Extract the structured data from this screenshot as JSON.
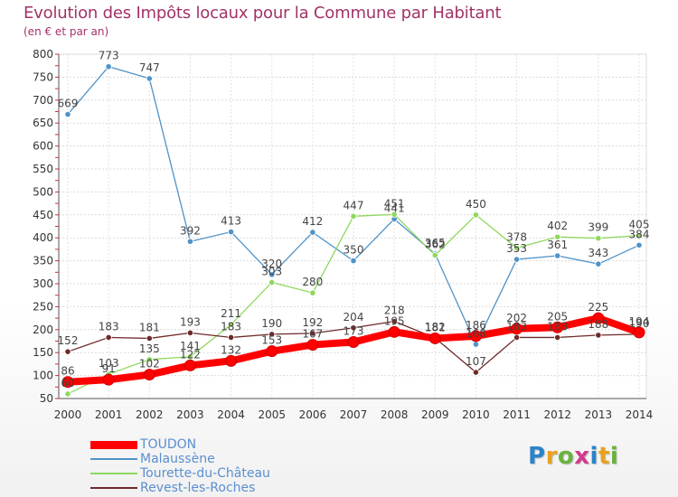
{
  "header": {
    "title": "Evolution des Impôts locaux pour la Commune par Habitant",
    "subtitle": "(en € et par an)"
  },
  "chart_data": {
    "type": "line",
    "title": "Evolution des Impôts locaux pour la Commune par Habitant",
    "subtitle": "(en € et par an)",
    "xlabel": "",
    "ylabel": "",
    "categories": [
      "2000",
      "2001",
      "2002",
      "2003",
      "2004",
      "2005",
      "2006",
      "2007",
      "2008",
      "2009",
      "2010",
      "2011",
      "2012",
      "2013",
      "2014"
    ],
    "ylim": [
      50,
      800
    ],
    "yticks": [
      50,
      100,
      150,
      200,
      250,
      300,
      350,
      400,
      450,
      500,
      550,
      600,
      650,
      700,
      750,
      800
    ],
    "grid": true,
    "legend_position": "bottom-left",
    "series": [
      {
        "name": "Malaussène",
        "color": "#4f93c8",
        "values": [
          669,
          773,
          747,
          392,
          413,
          320,
          412,
          350,
          441,
          365,
          168,
          353,
          361,
          343,
          384
        ]
      },
      {
        "name": "Tourette-du-Château",
        "color": "#8fd85f",
        "values": [
          60,
          103,
          135,
          141,
          211,
          303,
          280,
          447,
          451,
          362,
          450,
          378,
          402,
          399,
          405
        ]
      },
      {
        "name": "Revest-les-Roches",
        "color": "#6e2a2a",
        "values": [
          152,
          183,
          181,
          193,
          183,
          190,
          192,
          204,
          218,
          182,
          107,
          183,
          183,
          188,
          190
        ]
      },
      {
        "name": "TOUDON",
        "color": "#ff0000",
        "values": [
          86,
          91,
          102,
          122,
          132,
          153,
          167,
          173,
          195,
          181,
          186,
          202,
          205,
          225,
          194
        ]
      }
    ],
    "labels": [
      {
        "series": "Malaussène",
        "values": [
          "669",
          "773",
          "747",
          "392",
          "413",
          "320",
          "412",
          "350",
          "441",
          "365",
          "168",
          "353",
          "361",
          "343",
          "384"
        ]
      },
      {
        "series": "Tourette-du-Château",
        "values": [
          "60",
          "103",
          "135",
          "141",
          "211",
          "303",
          "280",
          "447",
          "451",
          "362",
          "450",
          "378",
          "402",
          "399",
          "405"
        ]
      },
      {
        "series": "Revest-les-Roches",
        "values": [
          "152",
          "183",
          "181",
          "193",
          "183",
          "190",
          "192",
          "204",
          "218",
          "182",
          "107",
          "183",
          "183",
          "188",
          "190"
        ]
      },
      {
        "series": "TOUDON",
        "values": [
          "86",
          "91",
          "102",
          "122",
          "132",
          "153",
          "167",
          "173",
          "195",
          "181",
          "186",
          "202",
          "205",
          "225",
          "194"
        ]
      }
    ]
  },
  "legend": {
    "items": [
      {
        "label": "TOUDON",
        "color": "#ff0000"
      },
      {
        "label": "Malaussène",
        "color": "#4f93c8"
      },
      {
        "label": "Tourette-du-Château",
        "color": "#8fd85f"
      },
      {
        "label": "Revest-les-Roches",
        "color": "#6e2a2a"
      }
    ]
  },
  "logo": {
    "letters": [
      "P",
      "r",
      "o",
      "x",
      "i",
      "t",
      "i"
    ],
    "colors": [
      "#2a84c8",
      "#e8a21e",
      "#69b33c",
      "#d23a8c",
      "#2a84c8",
      "#e8a21e",
      "#69b33c"
    ]
  }
}
